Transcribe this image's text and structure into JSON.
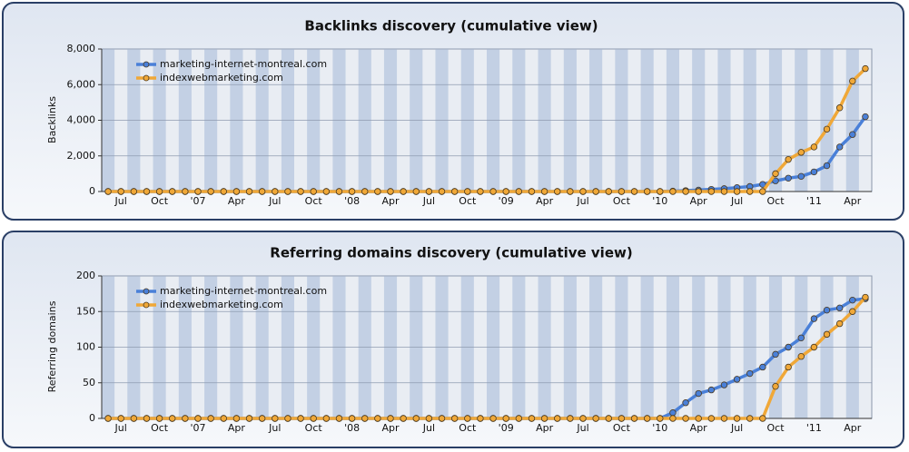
{
  "chart_data": [
    {
      "type": "line",
      "title": "Backlinks discovery (cumulative view)",
      "y_label": "Backlinks",
      "categories": [
        null,
        "Jul",
        null,
        null,
        "Oct",
        null,
        null,
        "'07",
        null,
        null,
        "Apr",
        null,
        null,
        "Jul",
        null,
        null,
        "Oct",
        null,
        null,
        "'08",
        null,
        null,
        "Apr",
        null,
        null,
        "Jul",
        null,
        null,
        "Oct",
        null,
        null,
        "'09",
        null,
        null,
        "Apr",
        null,
        null,
        "Jul",
        null,
        null,
        "Oct",
        null,
        null,
        "'10",
        null,
        null,
        "Apr",
        null,
        null,
        "Jul",
        null,
        null,
        "Oct",
        null,
        null,
        "'11",
        null,
        null,
        "Apr",
        null
      ],
      "series": [
        {
          "name": "marketing-internet-montreal.com",
          "color": "#4a80d8",
          "values": [
            0,
            0,
            0,
            0,
            0,
            0,
            0,
            0,
            0,
            0,
            0,
            0,
            0,
            0,
            0,
            0,
            0,
            0,
            0,
            0,
            0,
            0,
            0,
            0,
            0,
            0,
            0,
            0,
            0,
            0,
            0,
            0,
            0,
            0,
            0,
            0,
            0,
            0,
            0,
            0,
            0,
            0,
            0,
            0,
            20,
            50,
            80,
            120,
            160,
            220,
            280,
            400,
            600,
            750,
            850,
            1100,
            1450,
            2500,
            3200,
            4200
          ]
        },
        {
          "name": "indexwebmarketing.com",
          "color": "#f0a838",
          "values": [
            0,
            0,
            0,
            0,
            0,
            0,
            0,
            0,
            0,
            0,
            0,
            0,
            0,
            0,
            0,
            0,
            0,
            0,
            0,
            0,
            0,
            0,
            0,
            0,
            0,
            0,
            0,
            0,
            0,
            0,
            0,
            0,
            0,
            0,
            0,
            0,
            0,
            0,
            0,
            0,
            0,
            0,
            0,
            0,
            0,
            0,
            0,
            0,
            0,
            0,
            0,
            0,
            1000,
            1800,
            2200,
            2500,
            3500,
            4700,
            6200,
            6900
          ]
        }
      ],
      "ylim": [
        0,
        8000
      ],
      "yticks": [
        0,
        {
          "value": 2000,
          "label": "2,000"
        },
        {
          "value": 4000,
          "label": "4,000"
        },
        {
          "value": 6000,
          "label": "6,000"
        },
        {
          "value": 8000,
          "label": "8,000"
        }
      ],
      "grid": true,
      "legend": "top-left"
    },
    {
      "type": "line",
      "title": "Referring domains discovery (cumulative view)",
      "y_label": "Referring domains",
      "categories": [
        null,
        "Jul",
        null,
        null,
        "Oct",
        null,
        null,
        "'07",
        null,
        null,
        "Apr",
        null,
        null,
        "Jul",
        null,
        null,
        "Oct",
        null,
        null,
        "'08",
        null,
        null,
        "Apr",
        null,
        null,
        "Jul",
        null,
        null,
        "Oct",
        null,
        null,
        "'09",
        null,
        null,
        "Apr",
        null,
        null,
        "Jul",
        null,
        null,
        "Oct",
        null,
        null,
        "'10",
        null,
        null,
        "Apr",
        null,
        null,
        "Jul",
        null,
        null,
        "Oct",
        null,
        null,
        "'11",
        null,
        null,
        "Apr",
        null
      ],
      "series": [
        {
          "name": "marketing-internet-montreal.com",
          "color": "#4a80d8",
          "values": [
            0,
            0,
            0,
            0,
            0,
            0,
            0,
            0,
            0,
            0,
            0,
            0,
            0,
            0,
            0,
            0,
            0,
            0,
            0,
            0,
            0,
            0,
            0,
            0,
            0,
            0,
            0,
            0,
            0,
            0,
            0,
            0,
            0,
            0,
            0,
            0,
            0,
            0,
            0,
            0,
            0,
            0,
            0,
            0,
            8,
            22,
            35,
            40,
            47,
            55,
            63,
            72,
            90,
            100,
            113,
            140,
            152,
            155,
            166,
            168
          ]
        },
        {
          "name": "indexwebmarketing.com",
          "color": "#f0a838",
          "values": [
            0,
            0,
            0,
            0,
            0,
            0,
            0,
            0,
            0,
            0,
            0,
            0,
            0,
            0,
            0,
            0,
            0,
            0,
            0,
            0,
            0,
            0,
            0,
            0,
            0,
            0,
            0,
            0,
            0,
            0,
            0,
            0,
            0,
            0,
            0,
            0,
            0,
            0,
            0,
            0,
            0,
            0,
            0,
            0,
            0,
            0,
            0,
            0,
            0,
            0,
            0,
            0,
            45,
            72,
            87,
            100,
            118,
            133,
            150,
            170
          ]
        }
      ],
      "ylim": [
        0,
        200
      ],
      "yticks": [
        0,
        50,
        100,
        150,
        200
      ],
      "grid": true,
      "legend": "top-left"
    }
  ]
}
